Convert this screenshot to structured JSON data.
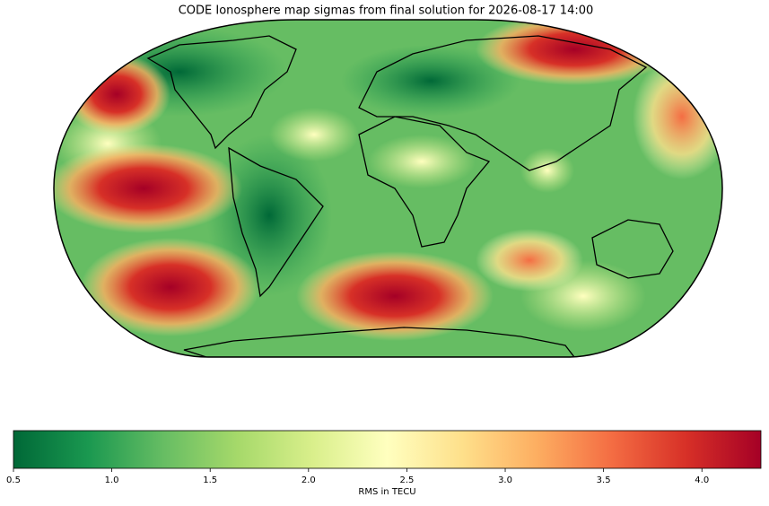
{
  "chart_data": {
    "type": "colormap-map",
    "title": "CODE Ionosphere map sigmas from final solution for 2026-08-17 14:00",
    "colorbar": {
      "label": "RMS in TECU",
      "lim": [
        0.5,
        4.3
      ],
      "ticks": [
        0.5,
        {
          "value": 1.0,
          "label": "1.0"
        },
        1.5,
        {
          "value": 2.0,
          "label": "2.0"
        },
        2.5,
        {
          "value": 3.0,
          "label": "3.0"
        },
        3.5,
        {
          "value": 4.0,
          "label": "4.0"
        }
      ],
      "colormap": [
        "#006837",
        "#1a9850",
        "#66bd63",
        "#a6d96a",
        "#d9ef8b",
        "#ffffbf",
        "#fee08b",
        "#fdae61",
        "#f46d43",
        "#d73027",
        "#a50026"
      ]
    }
  }
}
